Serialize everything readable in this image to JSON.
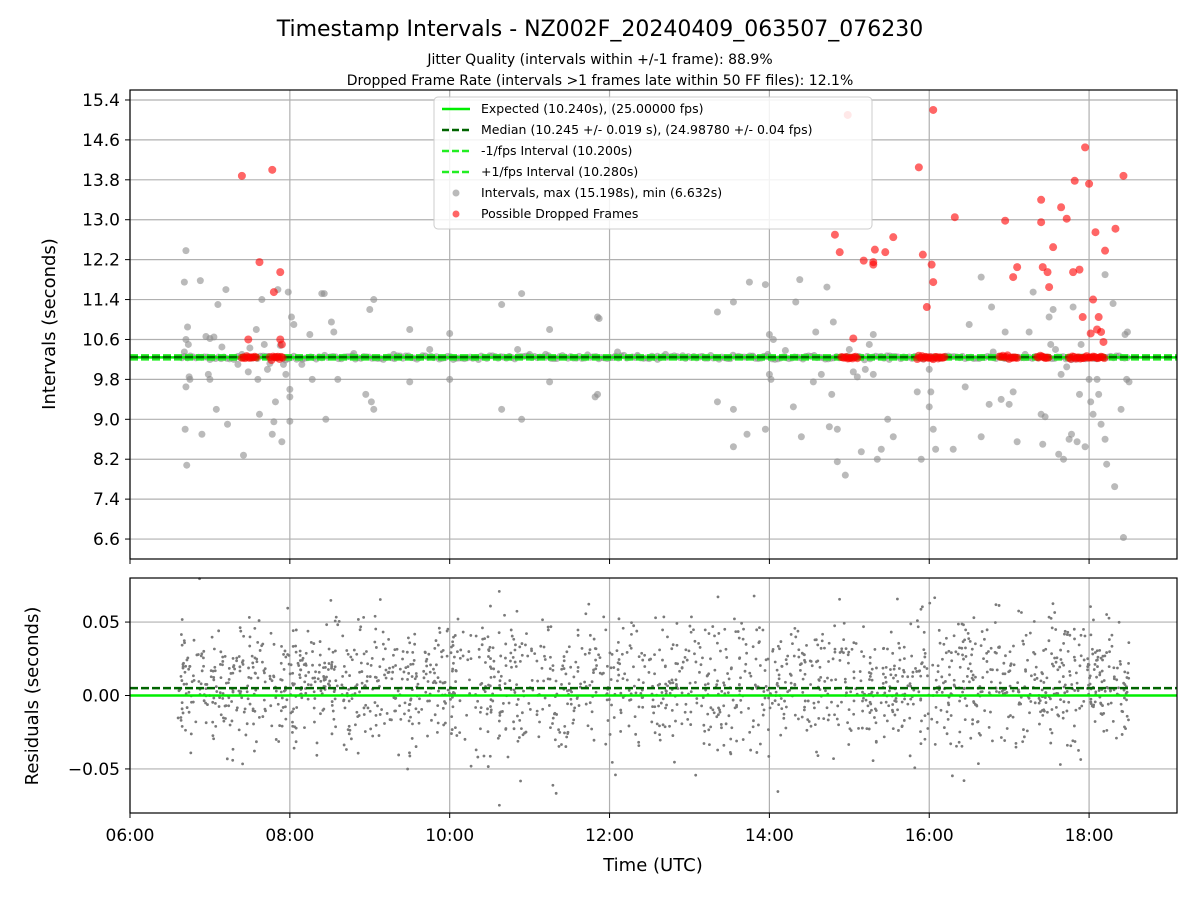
{
  "chart_data": [
    {
      "type": "scatter",
      "title": "Timestamp Intervals - NZ002F_20240409_063507_076230",
      "subtitle1": "Jitter Quality (intervals within +/-1 frame): 88.9%",
      "subtitle2": "Dropped Frame Rate (intervals >1 frames late within 50 FF files): 12.1%",
      "xlabel": "",
      "ylabel": "Intervals (seconds)",
      "x_range_hours": [
        6.0,
        19.1
      ],
      "ylim": [
        6.2,
        15.6
      ],
      "yticks": [
        "6.6",
        "7.4",
        "8.2",
        "9.0",
        "9.8",
        "10.6",
        "11.4",
        "12.2",
        "13.0",
        "13.8",
        "14.6",
        "15.4"
      ],
      "grid": true,
      "legend_position": "upper-center",
      "lines": {
        "expected": {
          "value": 10.24,
          "label": "Expected (10.240s), (25.00000 fps)",
          "color": "#00ee00"
        },
        "median": {
          "value": 10.245,
          "label": "Median (10.245 +/- 0.019 s), (24.98780 +/- 0.04 fps)",
          "color": "#006400"
        },
        "minus": {
          "value": 10.2,
          "label": "-1/fps Interval (10.200s)",
          "color": "#22ee22"
        },
        "plus": {
          "value": 10.28,
          "label": "+1/fps Interval (10.280s)",
          "color": "#22ee22"
        }
      },
      "series": [
        {
          "name": "Intervals, max (15.198s), min (6.632s)",
          "color": "#8c8c8c",
          "points": [
            [
              6.7,
              12.38
            ],
            [
              6.68,
              11.75
            ],
            [
              6.72,
              10.85
            ],
            [
              6.7,
              10.6
            ],
            [
              6.73,
              10.5
            ],
            [
              6.68,
              10.35
            ],
            [
              6.74,
              9.85
            ],
            [
              6.7,
              9.65
            ],
            [
              6.69,
              8.8
            ],
            [
              6.71,
              8.08
            ],
            [
              6.9,
              8.7
            ],
            [
              6.88,
              11.78
            ],
            [
              6.95,
              10.66
            ],
            [
              7.0,
              10.62
            ],
            [
              7.05,
              10.65
            ],
            [
              6.98,
              9.9
            ],
            [
              7.0,
              9.8
            ],
            [
              7.08,
              9.2
            ],
            [
              7.1,
              11.3
            ],
            [
              7.15,
              10.45
            ],
            [
              7.2,
              11.6
            ],
            [
              7.22,
              8.9
            ],
            [
              7.3,
              10.2
            ],
            [
              7.35,
              10.1
            ],
            [
              7.42,
              8.28
            ],
            [
              7.48,
              9.95
            ],
            [
              7.5,
              10.43
            ],
            [
              7.58,
              10.8
            ],
            [
              7.6,
              9.8
            ],
            [
              7.62,
              9.1
            ],
            [
              7.65,
              11.4
            ],
            [
              7.68,
              10.5
            ],
            [
              7.72,
              10.0
            ],
            [
              7.75,
              10.12
            ],
            [
              7.78,
              8.7
            ],
            [
              7.8,
              8.95
            ],
            [
              7.82,
              9.35
            ],
            [
              7.85,
              11.6
            ],
            [
              7.88,
              10.48
            ],
            [
              7.9,
              8.55
            ],
            [
              7.92,
              10.1
            ],
            [
              7.95,
              9.9
            ],
            [
              7.98,
              11.55
            ],
            [
              8.0,
              9.6
            ],
            [
              8.02,
              11.05
            ],
            [
              8.05,
              10.9
            ],
            [
              8.0,
              9.45
            ],
            [
              8.0,
              8.96
            ],
            [
              8.25,
              10.7
            ],
            [
              8.28,
              9.8
            ],
            [
              8.4,
              11.52
            ],
            [
              8.43,
              11.52
            ],
            [
              8.45,
              9.0
            ],
            [
              8.52,
              10.95
            ],
            [
              8.55,
              10.75
            ],
            [
              8.6,
              9.8
            ],
            [
              8.8,
              10.32
            ],
            [
              8.95,
              9.5
            ],
            [
              9.0,
              11.2
            ],
            [
              9.05,
              11.4
            ],
            [
              9.02,
              9.35
            ],
            [
              9.05,
              9.2
            ],
            [
              9.5,
              9.75
            ],
            [
              9.5,
              10.8
            ],
            [
              9.75,
              10.4
            ],
            [
              10.0,
              9.8
            ],
            [
              10.0,
              10.72
            ],
            [
              10.65,
              11.3
            ],
            [
              10.65,
              9.2
            ],
            [
              10.75,
              10.25
            ],
            [
              10.85,
              10.4
            ],
            [
              10.9,
              11.52
            ],
            [
              10.9,
              9.0
            ],
            [
              11.0,
              10.3
            ],
            [
              11.25,
              9.75
            ],
            [
              11.25,
              10.8
            ],
            [
              11.2,
              10.3
            ],
            [
              11.82,
              9.45
            ],
            [
              11.85,
              9.5
            ],
            [
              11.85,
              11.05
            ],
            [
              11.87,
              11.02
            ],
            [
              12.35,
              10.28
            ],
            [
              12.6,
              10.2
            ],
            [
              12.7,
              10.3
            ],
            [
              13.35,
              11.15
            ],
            [
              13.35,
              9.35
            ],
            [
              13.55,
              9.2
            ],
            [
              13.55,
              8.45
            ],
            [
              13.55,
              11.35
            ],
            [
              13.72,
              8.7
            ],
            [
              13.75,
              11.75
            ],
            [
              13.8,
              10.25
            ],
            [
              13.95,
              8.8
            ],
            [
              13.95,
              11.7
            ],
            [
              13.98,
              10.3
            ],
            [
              14.0,
              10.7
            ],
            [
              14.0,
              9.9
            ],
            [
              14.02,
              9.8
            ],
            [
              14.05,
              10.6
            ],
            [
              14.3,
              9.25
            ],
            [
              14.33,
              11.35
            ],
            [
              14.4,
              8.65
            ],
            [
              14.38,
              11.8
            ],
            [
              14.55,
              9.75
            ],
            [
              14.58,
              10.75
            ],
            [
              14.65,
              9.9
            ],
            [
              14.72,
              11.65
            ],
            [
              14.75,
              8.85
            ],
            [
              14.78,
              9.5
            ],
            [
              14.8,
              10.95
            ],
            [
              14.85,
              8.8
            ],
            [
              14.85,
              8.15
            ],
            [
              14.95,
              7.88
            ],
            [
              15.0,
              10.4
            ],
            [
              15.05,
              9.95
            ],
            [
              15.1,
              9.85
            ],
            [
              15.15,
              8.35
            ],
            [
              15.2,
              10.0
            ],
            [
              15.25,
              10.5
            ],
            [
              15.3,
              10.7
            ],
            [
              15.3,
              9.9
            ],
            [
              15.35,
              8.2
            ],
            [
              15.4,
              8.4
            ],
            [
              15.48,
              9.0
            ],
            [
              15.5,
              10.2
            ],
            [
              15.55,
              8.65
            ],
            [
              15.85,
              9.55
            ],
            [
              15.9,
              8.2
            ],
            [
              16.0,
              9.25
            ],
            [
              16.02,
              9.55
            ],
            [
              16.05,
              8.8
            ],
            [
              16.08,
              8.4
            ],
            [
              16.0,
              10.0
            ],
            [
              16.3,
              8.4
            ],
            [
              16.45,
              9.65
            ],
            [
              16.5,
              10.9
            ],
            [
              16.65,
              8.65
            ],
            [
              16.65,
              11.85
            ],
            [
              16.75,
              9.3
            ],
            [
              16.78,
              11.25
            ],
            [
              16.9,
              9.4
            ],
            [
              16.95,
              10.75
            ],
            [
              17.0,
              9.3
            ],
            [
              17.05,
              9.55
            ],
            [
              17.1,
              8.55
            ],
            [
              17.25,
              10.75
            ],
            [
              17.3,
              11.55
            ],
            [
              17.4,
              9.1
            ],
            [
              17.42,
              8.5
            ],
            [
              17.45,
              9.05
            ],
            [
              17.5,
              11.05
            ],
            [
              17.52,
              10.5
            ],
            [
              17.55,
              11.2
            ],
            [
              17.58,
              10.4
            ],
            [
              17.62,
              8.3
            ],
            [
              17.65,
              9.9
            ],
            [
              17.68,
              8.2
            ],
            [
              17.72,
              10.05
            ],
            [
              17.75,
              8.6
            ],
            [
              17.78,
              8.7
            ],
            [
              17.8,
              11.25
            ],
            [
              17.85,
              8.55
            ],
            [
              17.88,
              9.5
            ],
            [
              17.9,
              10.5
            ],
            [
              17.95,
              8.45
            ],
            [
              18.0,
              9.8
            ],
            [
              18.02,
              9.35
            ],
            [
              18.05,
              9.1
            ],
            [
              18.1,
              9.8
            ],
            [
              18.12,
              9.5
            ],
            [
              18.15,
              8.9
            ],
            [
              18.2,
              11.9
            ],
            [
              18.22,
              8.1
            ],
            [
              18.2,
              8.6
            ],
            [
              18.3,
              11.32
            ],
            [
              18.32,
              7.65
            ],
            [
              18.4,
              9.2
            ],
            [
              18.43,
              6.63
            ],
            [
              18.47,
              9.8
            ],
            [
              18.45,
              10.7
            ],
            [
              18.48,
              10.75
            ],
            [
              18.5,
              9.75
            ],
            [
              6.75,
              9.8
            ],
            [
              7.4,
              10.3
            ],
            [
              8.15,
              10.1
            ],
            [
              9.3,
              10.3
            ],
            [
              12.1,
              10.35
            ],
            [
              14.2,
              10.38
            ],
            [
              16.8,
              10.35
            ],
            [
              17.2,
              10.3
            ]
          ]
        },
        {
          "name": "Possible Dropped Frames",
          "color": "#ff0000",
          "points": [
            [
              7.4,
              13.88
            ],
            [
              7.48,
              10.6
            ],
            [
              7.62,
              12.15
            ],
            [
              7.78,
              14.0
            ],
            [
              7.8,
              11.55
            ],
            [
              7.88,
              11.95
            ],
            [
              7.88,
              10.6
            ],
            [
              7.9,
              10.5
            ],
            [
              14.82,
              12.7
            ],
            [
              14.88,
              12.35
            ],
            [
              14.98,
              15.1
            ],
            [
              15.05,
              10.62
            ],
            [
              15.18,
              12.18
            ],
            [
              15.3,
              12.1
            ],
            [
              15.32,
              12.4
            ],
            [
              15.3,
              12.15
            ],
            [
              15.45,
              12.35
            ],
            [
              15.55,
              12.65
            ],
            [
              15.87,
              14.05
            ],
            [
              15.92,
              12.3
            ],
            [
              15.97,
              11.25
            ],
            [
              16.03,
              12.1
            ],
            [
              16.05,
              11.75
            ],
            [
              16.05,
              15.2
            ],
            [
              16.32,
              13.05
            ],
            [
              16.95,
              12.98
            ],
            [
              17.05,
              11.85
            ],
            [
              17.1,
              12.05
            ],
            [
              17.4,
              13.4
            ],
            [
              17.4,
              12.95
            ],
            [
              17.42,
              12.05
            ],
            [
              17.48,
              11.95
            ],
            [
              17.5,
              11.65
            ],
            [
              17.55,
              12.45
            ],
            [
              17.65,
              13.25
            ],
            [
              17.72,
              13.02
            ],
            [
              17.8,
              11.95
            ],
            [
              17.82,
              13.78
            ],
            [
              17.88,
              12.0
            ],
            [
              17.92,
              11.05
            ],
            [
              17.95,
              14.45
            ],
            [
              18.0,
              13.72
            ],
            [
              18.02,
              10.72
            ],
            [
              18.05,
              11.4
            ],
            [
              18.08,
              12.75
            ],
            [
              18.1,
              10.8
            ],
            [
              18.12,
              11.05
            ],
            [
              18.15,
              10.75
            ],
            [
              18.18,
              10.55
            ],
            [
              18.2,
              12.38
            ],
            [
              18.33,
              12.82
            ],
            [
              18.43,
              13.88
            ]
          ]
        }
      ],
      "dropped_clusters": [
        [
          7.4,
          7.58
        ],
        [
          7.75,
          7.92
        ],
        [
          14.9,
          15.1
        ],
        [
          15.85,
          16.2
        ],
        [
          16.88,
          17.1
        ],
        [
          17.35,
          17.5
        ],
        [
          17.75,
          18.2
        ]
      ]
    },
    {
      "type": "scatter",
      "xlabel": "Time (UTC)",
      "ylabel": "Residuals (seconds)",
      "x_range_hours": [
        6.0,
        19.1
      ],
      "xticks": [
        "06:00",
        "08:00",
        "10:00",
        "12:00",
        "14:00",
        "16:00",
        "18:00"
      ],
      "ylim": [
        -0.08,
        0.08
      ],
      "yticks": [
        "−0.05",
        "0.00",
        "0.05"
      ],
      "grid": true,
      "zero_line": {
        "value": 0.0,
        "color": "#00ee00"
      },
      "median_line": {
        "value": 0.005,
        "color": "#006400"
      },
      "series": [
        {
          "name": "",
          "color": "#7a7a7a",
          "x_start": 6.6,
          "x_end": 18.5,
          "count": 1900,
          "spread": 0.022
        }
      ]
    }
  ]
}
